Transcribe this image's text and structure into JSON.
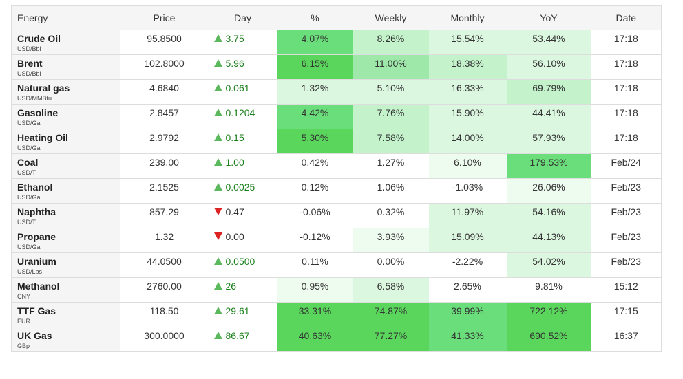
{
  "table": {
    "headers": [
      "Energy",
      "Price",
      "Day",
      "%",
      "Weekly",
      "Monthly",
      "YoY",
      "Date"
    ],
    "rows": [
      {
        "name": "Crude Oil",
        "unit": "USD/Bbl",
        "price": "95.8500",
        "dir": "up",
        "day": "3.75",
        "pct": "4.07%",
        "weekly": "8.26%",
        "monthly": "15.54%",
        "yoy": "53.44%",
        "date": "17:18",
        "colors": [
          "g5",
          "g3",
          "g2",
          "g2"
        ]
      },
      {
        "name": "Brent",
        "unit": "USD/Bbl",
        "price": "102.8000",
        "dir": "up",
        "day": "5.96",
        "pct": "6.15%",
        "weekly": "11.00%",
        "monthly": "18.38%",
        "yoy": "56.10%",
        "date": "17:18",
        "colors": [
          "g6",
          "g4",
          "g3",
          "g2"
        ]
      },
      {
        "name": "Natural gas",
        "unit": "USD/MMBtu",
        "price": "4.6840",
        "dir": "up",
        "day": "0.061",
        "pct": "1.32%",
        "weekly": "5.10%",
        "monthly": "16.33%",
        "yoy": "69.79%",
        "date": "17:18",
        "colors": [
          "g2",
          "g2",
          "g2",
          "g3"
        ]
      },
      {
        "name": "Gasoline",
        "unit": "USD/Gal",
        "price": "2.8457",
        "dir": "up",
        "day": "0.1204",
        "pct": "4.42%",
        "weekly": "7.76%",
        "monthly": "15.90%",
        "yoy": "44.41%",
        "date": "17:18",
        "colors": [
          "g5",
          "g3",
          "g2",
          "g2"
        ]
      },
      {
        "name": "Heating Oil",
        "unit": "USD/Gal",
        "price": "2.9792",
        "dir": "up",
        "day": "0.15",
        "pct": "5.30%",
        "weekly": "7.58%",
        "monthly": "14.00%",
        "yoy": "57.93%",
        "date": "17:18",
        "colors": [
          "g6",
          "g3",
          "g2",
          "g2"
        ]
      },
      {
        "name": "Coal",
        "unit": "USD/T",
        "price": "239.00",
        "dir": "up",
        "day": "1.00",
        "pct": "0.42%",
        "weekly": "1.27%",
        "monthly": "6.10%",
        "yoy": "179.53%",
        "date": "Feb/24",
        "colors": [
          "white",
          "white",
          "g1",
          "g5"
        ]
      },
      {
        "name": "Ethanol",
        "unit": "USD/Gal",
        "price": "2.1525",
        "dir": "up",
        "day": "0.0025",
        "pct": "0.12%",
        "weekly": "1.06%",
        "monthly": "-1.03%",
        "yoy": "26.06%",
        "date": "Feb/23",
        "colors": [
          "white",
          "white",
          "white",
          "g1"
        ]
      },
      {
        "name": "Naphtha",
        "unit": "USD/T",
        "price": "857.29",
        "dir": "down",
        "day": "0.47",
        "pct": "-0.06%",
        "weekly": "0.32%",
        "monthly": "11.97%",
        "yoy": "54.16%",
        "date": "Feb/23",
        "colors": [
          "white",
          "white",
          "g2",
          "g2"
        ]
      },
      {
        "name": "Propane",
        "unit": "USD/Gal",
        "price": "1.32",
        "dir": "down",
        "day": "0.00",
        "pct": "-0.12%",
        "weekly": "3.93%",
        "monthly": "15.09%",
        "yoy": "44.13%",
        "date": "Feb/23",
        "colors": [
          "white",
          "g1",
          "g2",
          "g2"
        ]
      },
      {
        "name": "Uranium",
        "unit": "USD/Lbs",
        "price": "44.0500",
        "dir": "up",
        "day": "0.0500",
        "pct": "0.11%",
        "weekly": "0.00%",
        "monthly": "-2.22%",
        "yoy": "54.02%",
        "date": "Feb/23",
        "colors": [
          "white",
          "white",
          "white",
          "g2"
        ]
      },
      {
        "name": "Methanol",
        "unit": "CNY",
        "price": "2760.00",
        "dir": "up",
        "day": "26",
        "pct": "0.95%",
        "weekly": "6.58%",
        "monthly": "2.65%",
        "yoy": "9.81%",
        "date": "15:12",
        "colors": [
          "g1",
          "g2",
          "white",
          "white"
        ]
      },
      {
        "name": "TTF Gas",
        "unit": "EUR",
        "price": "118.50",
        "dir": "up",
        "day": "29.61",
        "pct": "33.31%",
        "weekly": "74.87%",
        "monthly": "39.99%",
        "yoy": "722.12%",
        "date": "17:15",
        "colors": [
          "g6",
          "g6",
          "g5",
          "g6"
        ]
      },
      {
        "name": "UK Gas",
        "unit": "GBp",
        "price": "300.0000",
        "dir": "up",
        "day": "86.67",
        "pct": "40.63%",
        "weekly": "77.27%",
        "monthly": "41.33%",
        "yoy": "690.52%",
        "date": "16:37",
        "colors": [
          "g6",
          "g6",
          "g5",
          "g6"
        ]
      }
    ]
  }
}
